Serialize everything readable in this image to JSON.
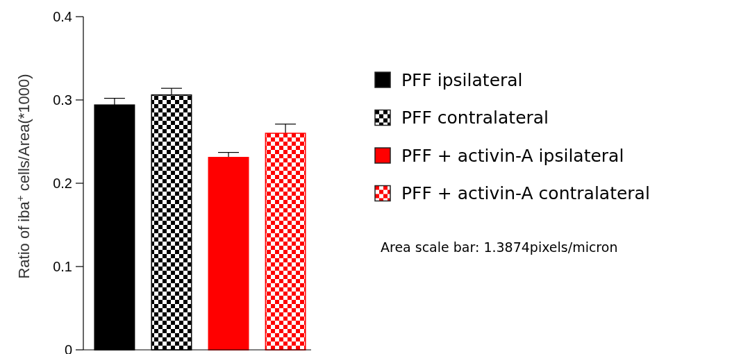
{
  "chart_data": {
    "type": "bar",
    "ylabel": "Ratio of iba$^{+}$ cells/Area(*1000)",
    "categories": [
      null,
      null,
      null,
      null
    ],
    "ylim": [
      0,
      0.4
    ],
    "yticks": [
      0,
      0.1,
      0.2,
      0.3,
      0.4
    ],
    "legend": "right",
    "annotations": [
      "Area scale bar: 1.3874pixels/micron"
    ],
    "series": [
      {
        "name": "PFF ipsilateral",
        "color": "#000000",
        "values": [
          0.294,
          null,
          null,
          null
        ],
        "errors": [
          0.008,
          null,
          null,
          null
        ]
      },
      {
        "name": "PFF contralateral",
        "color": "#000000",
        "values": [
          null,
          0.306,
          null,
          null
        ],
        "errors": [
          null,
          0.008,
          null,
          null
        ]
      },
      {
        "name": "PFF + activin-A ipsilateral",
        "color": "#ff0000",
        "values": [
          null,
          null,
          0.231,
          null
        ],
        "errors": [
          null,
          null,
          0.006,
          null
        ]
      },
      {
        "name": "PFF + activin-A contralateral",
        "color": "#ff0000",
        "values": [
          null,
          null,
          null,
          0.26
        ],
        "errors": [
          null,
          null,
          null,
          0.011
        ]
      }
    ]
  }
}
